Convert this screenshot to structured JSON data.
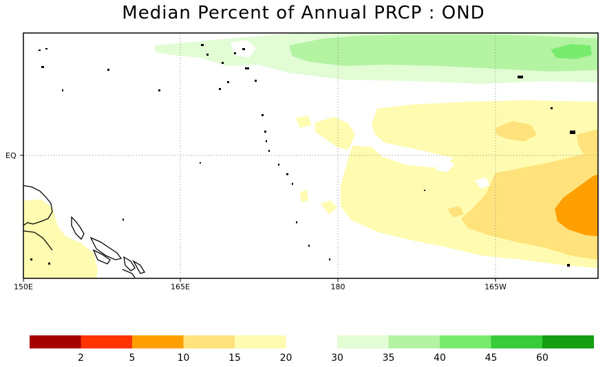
{
  "title": "Median Percent of Annual PRCP  :  OND",
  "axes": {
    "x_ticks": [
      "150E",
      "165E",
      "180",
      "165W"
    ],
    "y_ticks": [
      "EQ"
    ]
  },
  "colorbar": {
    "swatches": [
      "#a50000",
      "#ff3300",
      "#ff9f00",
      "#ffe27b",
      "#fffbb0",
      "#ffffff",
      "#e2fcd4",
      "#b3f3a2",
      "#78eb6f",
      "#38cc3a",
      "#139e13"
    ],
    "labels": [
      "2",
      "5",
      "10",
      "15",
      "20",
      "30",
      "35",
      "40",
      "45",
      "60"
    ]
  },
  "colors": {
    "green_lightest": "#e2fcd4",
    "green_light": "#b3f3a2",
    "green_mid": "#78eb6f",
    "yellow_pale": "#fffbb0",
    "yellow": "#ffe27b",
    "orange": "#ff9f00"
  }
}
